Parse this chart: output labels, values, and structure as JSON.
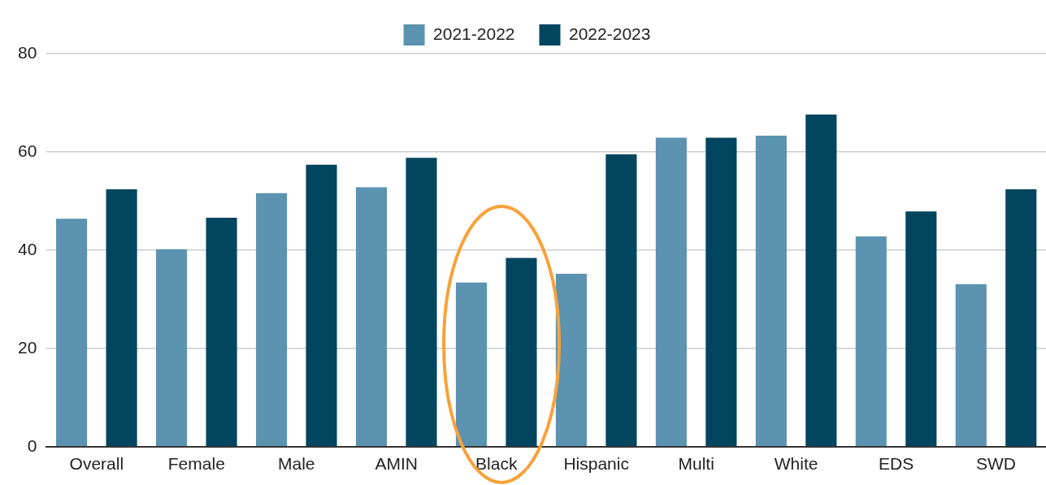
{
  "chart_data": {
    "type": "bar",
    "categories": [
      "Overall",
      "Female",
      "Male",
      "AMIN",
      "Black",
      "Hispanic",
      "Multi",
      "White",
      "EDS",
      "SWD"
    ],
    "series": [
      {
        "name": "2021-2022",
        "color": "#5b93b0",
        "values": [
          46.4,
          40.2,
          51.6,
          52.8,
          33.4,
          35.2,
          62.9,
          63.3,
          42.8,
          33.1
        ]
      },
      {
        "name": "2022-2023",
        "color": "#02455f",
        "values": [
          52.4,
          46.6,
          57.4,
          58.8,
          38.4,
          59.5,
          62.9,
          67.6,
          47.9,
          52.4
        ]
      }
    ],
    "ylim": [
      0,
      80
    ],
    "yticks": [
      0,
      20,
      40,
      60,
      80
    ],
    "grid": "y",
    "legend": "top"
  }
}
